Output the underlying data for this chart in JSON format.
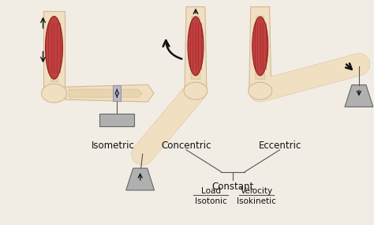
{
  "bg_color": "#f2ede4",
  "skin_color": "#f0dfc0",
  "skin_edge": "#d4b896",
  "muscle_color": "#c04040",
  "muscle_edge": "#8b2020",
  "weight_color": "#b0b0b0",
  "weight_edge": "#666666",
  "arrow_color": "#111111",
  "line_color": "#555555",
  "text_color": "#111111",
  "labels": {
    "isometric": "Isometric",
    "concentric": "Concentric",
    "eccentric": "Eccentric",
    "constant": "Constant",
    "load": "Load",
    "isotonic": "Isotonic",
    "velocity": "Velocity",
    "isokinetic": "Isokinetic"
  },
  "font_size": 8.5,
  "font_size_sm": 7.5
}
